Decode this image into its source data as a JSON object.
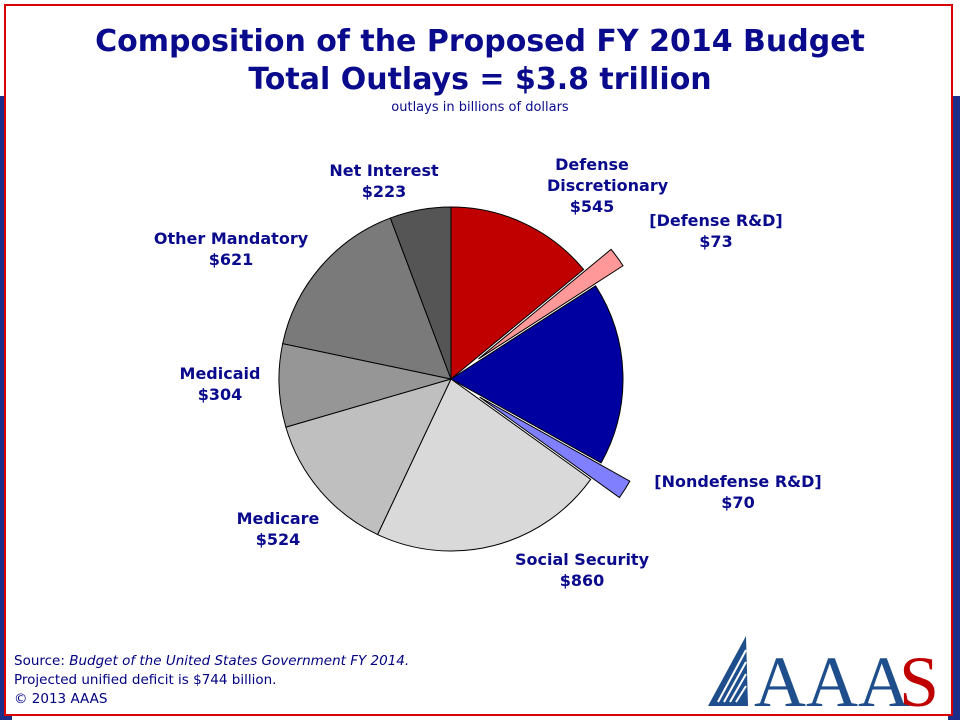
{
  "header": {
    "title_line1": "Composition of the Proposed FY 2014 Budget",
    "title_line2": "Total Outlays = $3.8 trillion",
    "subtitle": "outlays in billions of dollars"
  },
  "chart_data": {
    "type": "pie",
    "unit": "billions of dollars",
    "slices": [
      {
        "name": "Defense Discretionary",
        "value_label": "$545",
        "value": 545,
        "color": "#c00000"
      },
      {
        "name": "[Defense R&D]",
        "value_label": "$73",
        "value": 73,
        "color": "#ff9999",
        "exploded": true
      },
      {
        "name": "",
        "value_label": "",
        "value": 670,
        "color": "#0000a0"
      },
      {
        "name": "[Nondefense R&D]",
        "value_label": "$70",
        "value": 70,
        "color": "#8080ff",
        "exploded": true
      },
      {
        "name": "Social Security",
        "value_label": "$860",
        "value": 860,
        "color": "#d9d9d9"
      },
      {
        "name": "Medicare",
        "value_label": "$524",
        "value": 524,
        "color": "#bfbfbf"
      },
      {
        "name": "Medicaid",
        "value_label": "$304",
        "value": 304,
        "color": "#969696"
      },
      {
        "name": "Other Mandatory",
        "value_label": "$621",
        "value": 621,
        "color": "#7a7a7a"
      },
      {
        "name": "Net Interest",
        "value_label": "$223",
        "value": 223,
        "color": "#555555"
      }
    ]
  },
  "footer": {
    "source_prefix": "Source: ",
    "source_title": "Budget of the United States Government FY 2014.",
    "deficit_note": "Projected unified deficit is $744 billion.",
    "copyright": "© 2013 AAAS"
  },
  "logo": {
    "text": "AAAS",
    "mark_color": "#1f4e8c",
    "text_color": "#1f4e8c",
    "accent_color": "#c00000"
  }
}
